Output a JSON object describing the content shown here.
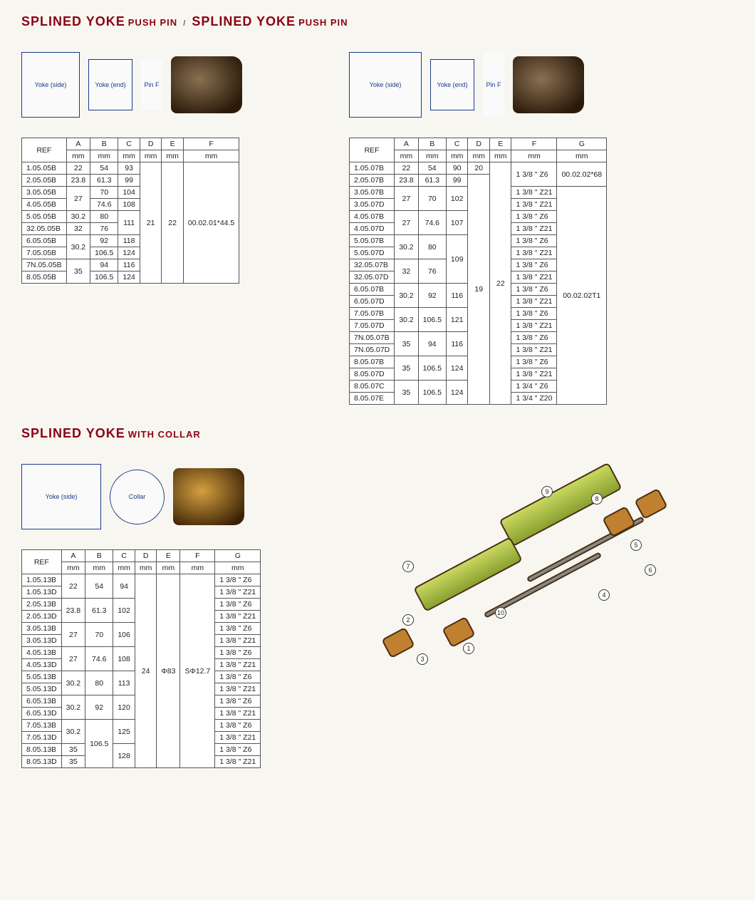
{
  "titles": {
    "t1_big1": "SPLINED YOKE",
    "t1_small1": "PUSH PIN",
    "t1_big2": "SPLINED YOKE",
    "t1_small2": "PUSH PIN",
    "t2_big": "SPLINED YOKE",
    "t2_small": "WITH COLLAR"
  },
  "headers": {
    "ref": "REF",
    "A": "A",
    "B": "B",
    "C": "C",
    "D": "D",
    "E": "E",
    "F": "F",
    "G": "G",
    "mm": "mm"
  },
  "table1": {
    "rows": [
      {
        "ref": "1.05.05B",
        "a": "22",
        "b": "54",
        "c": "93"
      },
      {
        "ref": "2.05.05B",
        "a": "23.8",
        "b": "61.3",
        "c": "99"
      },
      {
        "ref": "3.05.05B",
        "a": "27",
        "b": "70",
        "c": "104",
        "a_span": 2
      },
      {
        "ref": "4.05.05B",
        "b": "74.6",
        "c": "108"
      },
      {
        "ref": "5.05.05B",
        "a": "30.2",
        "b": "80",
        "c": "111",
        "c_span": 2
      },
      {
        "ref": "32.05.05B",
        "a": "32",
        "b": "76"
      },
      {
        "ref": "6.05.05B",
        "a": "30.2",
        "b": "92",
        "c": "118",
        "a_span": 2
      },
      {
        "ref": "7.05.05B",
        "b": "106.5",
        "c": "124"
      },
      {
        "ref": "7N.05.05B",
        "a": "35",
        "b": "94",
        "c": "116",
        "a_span": 2
      },
      {
        "ref": "8.05.05B",
        "b": "106.5",
        "c": "124"
      }
    ],
    "d": "21",
    "e": "22",
    "f": "00.02.01*44.5"
  },
  "table2": {
    "rows": [
      {
        "ref": "1.05.07B",
        "a": "22",
        "b": "54",
        "c": "90",
        "d": "20",
        "f": "1 3/8 \" Z6",
        "g": "00.02.02*68",
        "f_span": 2
      },
      {
        "ref": "2.05.07B",
        "a": "23.8",
        "b": "61.3",
        "c": "99"
      },
      {
        "ref": "3.05.07B",
        "a": "27",
        "b": "70",
        "c": "102",
        "a_span": 2,
        "b_span": 2,
        "c_span": 2,
        "f": "1 3/8 \" Z21"
      },
      {
        "ref": "3.05.07D",
        "f": "1 3/8 \" Z21"
      },
      {
        "ref": "4.05.07B",
        "a": "27",
        "b": "74.6",
        "c": "107",
        "a_span": 2,
        "b_span": 2,
        "c_span": 2,
        "f": "1 3/8 \" Z6"
      },
      {
        "ref": "4.05.07D",
        "f": "1 3/8 \" Z21"
      },
      {
        "ref": "5.05.07B",
        "a": "30.2",
        "b": "80",
        "a_span": 2,
        "b_span": 2,
        "c": "109",
        "c_span": 4,
        "f": "1 3/8 \" Z6"
      },
      {
        "ref": "5.05.07D",
        "f": "1 3/8 \" Z21"
      },
      {
        "ref": "32.05.07B",
        "a": "32",
        "b": "76",
        "a_span": 2,
        "b_span": 2,
        "f": "1 3/8 \"  Z6"
      },
      {
        "ref": "32.05.07D",
        "f": "1 3/8 \" Z21"
      },
      {
        "ref": "6.05.07B",
        "a": "30.2",
        "b": "92",
        "c": "116",
        "a_span": 2,
        "b_span": 2,
        "c_span": 2,
        "f": "1 3/8 \"  Z6"
      },
      {
        "ref": "6.05.07D",
        "f": "1 3/8 \" Z21"
      },
      {
        "ref": "7.05.07B",
        "a": "30.2",
        "b": "106.5",
        "c": "121",
        "a_span": 2,
        "b_span": 2,
        "c_span": 2,
        "f": "1 3/8 \" Z6"
      },
      {
        "ref": "7.05.07D",
        "f": "1 3/8 \" Z21"
      },
      {
        "ref": "7N.05.07B",
        "a": "35",
        "b": "94",
        "c": "116",
        "a_span": 2,
        "b_span": 2,
        "c_span": 2,
        "f": "1 3/8 \"  Z6"
      },
      {
        "ref": "7N.05.07D",
        "f": "1 3/8 \" Z21"
      },
      {
        "ref": "8.05.07B",
        "a": "35",
        "b": "106.5",
        "c": "124",
        "a_span": 2,
        "b_span": 2,
        "c_span": 2,
        "f": "1 3/8 \" Z6"
      },
      {
        "ref": "8.05.07D",
        "f": "1 3/8 \" Z21"
      },
      {
        "ref": "8.05.07C",
        "a": "35",
        "b": "106.5",
        "c": "124",
        "a_span": 2,
        "b_span": 2,
        "c_span": 2,
        "f": "1 3/4 \" Z6"
      },
      {
        "ref": "8.05.07E",
        "f": "1 3/4 \" Z20"
      }
    ],
    "d": "19",
    "e": "22",
    "g2": "00.02.02T1"
  },
  "table3": {
    "rows": [
      {
        "ref": "1.05.13B",
        "a": "22",
        "b": "54",
        "c": "94",
        "a_span": 2,
        "b_span": 2,
        "c_span": 2,
        "g": "1 3/8 \" Z6"
      },
      {
        "ref": "1.05.13D",
        "g": "1 3/8 \" Z21"
      },
      {
        "ref": "2.05.13B",
        "a": "23.8",
        "b": "61.3",
        "c": "102",
        "a_span": 2,
        "b_span": 2,
        "c_span": 2,
        "g": "1 3/8 \" Z6"
      },
      {
        "ref": "2.05.13D",
        "g": "1 3/8 \" Z21"
      },
      {
        "ref": "3.05.13B",
        "a": "27",
        "b": "70",
        "c": "106",
        "a_span": 2,
        "b_span": 2,
        "c_span": 2,
        "g": "1 3/8 \" Z6"
      },
      {
        "ref": "3.05.13D",
        "g": "1 3/8 \" Z21"
      },
      {
        "ref": "4.05.13B",
        "a": "27",
        "b": "74.6",
        "c": "108",
        "a_span": 2,
        "b_span": 2,
        "c_span": 2,
        "g": "1 3/8 \" Z6"
      },
      {
        "ref": "4.05.13D",
        "g": "1 3/8 \" Z21"
      },
      {
        "ref": "5.05.13B",
        "a": "30.2",
        "b": "80",
        "c": "113",
        "a_span": 2,
        "b_span": 2,
        "c_span": 2,
        "g": "1 3/8 \" Z6"
      },
      {
        "ref": "5.05.13D",
        "g": "1 3/8 \" Z21"
      },
      {
        "ref": "6.05.13B",
        "a": "30.2",
        "b": "92",
        "c": "120",
        "a_span": 2,
        "b_span": 2,
        "c_span": 2,
        "g": "1 3/8 \" Z6"
      },
      {
        "ref": "6.05.13D",
        "g": "1 3/8 \" Z21"
      },
      {
        "ref": "7.05.13B",
        "a": "30.2",
        "b": "106.5",
        "c": "125",
        "a_span": 2,
        "b_span": 4,
        "c_span": 2,
        "g": "1 3/8 \" Z6"
      },
      {
        "ref": "7.05.13D",
        "g": "1 3/8 \" Z21"
      },
      {
        "ref": "8.05.13B",
        "a": "35",
        "c": "128",
        "c_span": 2,
        "g": "1 3/8 \" Z6"
      },
      {
        "ref": "8.05.13D",
        "a": "35",
        "g": "1 3/8 \" Z21"
      }
    ],
    "d": "24",
    "e": "Φ83",
    "f": "SΦ12.7"
  },
  "diagram_labels": {
    "yoke_side": "Yoke\n(side)",
    "yoke_end": "Yoke\n(end)",
    "pin": "Pin F",
    "collar": "Collar"
  },
  "illus_labels": [
    "1",
    "2",
    "3",
    "4",
    "5",
    "6",
    "7",
    "8",
    "9",
    "10"
  ],
  "style": {
    "title_color": "#8b0015",
    "border_color": "#555",
    "diagram_color": "#1a3a8a",
    "page_bg": "#f8f6f0"
  }
}
